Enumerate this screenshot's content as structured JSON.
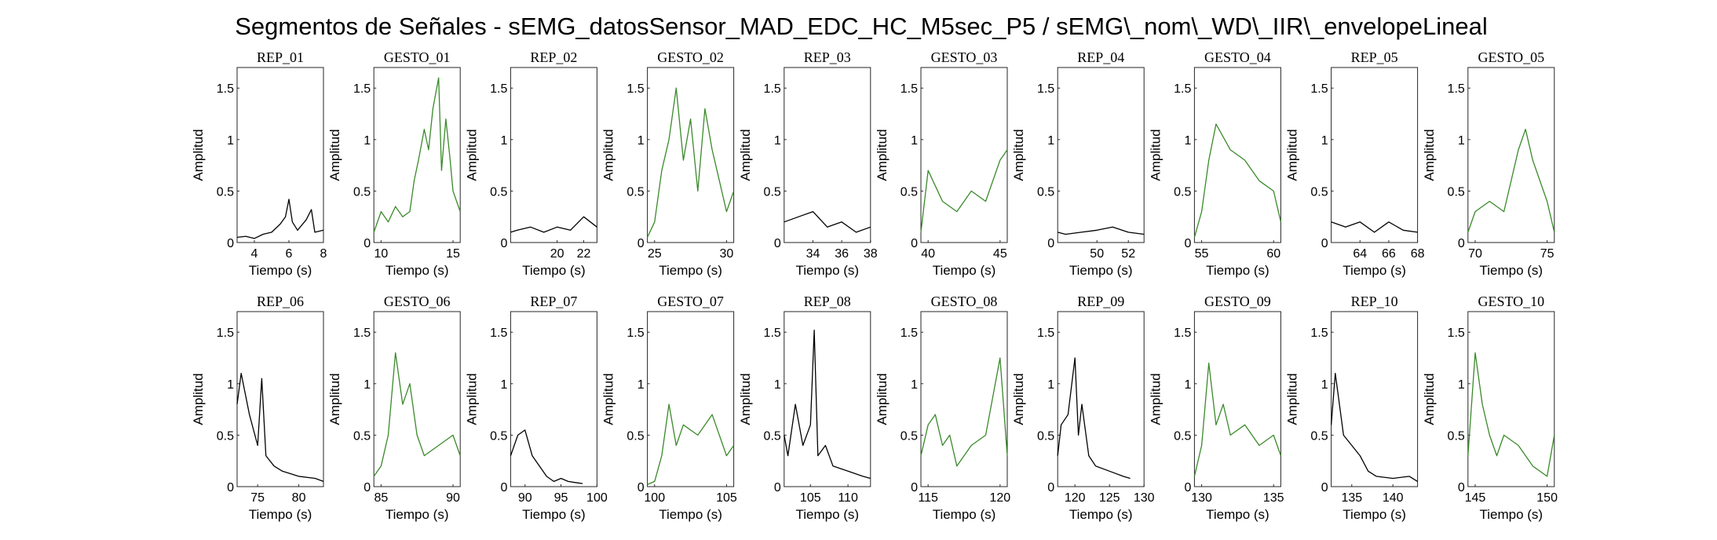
{
  "figure": {
    "title": "Segmentos de Señales - sEMG_datosSensor_MAD_EDC_HC_M5sec_P5 / sEMG\\_nom\\_WD\\_IIR\\_envelopeLineal"
  },
  "colors": {
    "rep": "#000000",
    "gesto": "#3a8a2a",
    "axis": "#262626"
  },
  "chart_data": [
    {
      "type": "line",
      "title": "REP_01",
      "series_color": "rep",
      "xlabel": "Tiempo (s)",
      "ylabel": "Amplitud",
      "xlim": [
        3,
        8
      ],
      "ylim": [
        0,
        1.7
      ],
      "xticks": [
        4,
        6,
        8
      ],
      "yticks": [
        0,
        0.5,
        1,
        1.5
      ],
      "x": [
        3,
        3.5,
        4,
        4.5,
        5,
        5.5,
        5.8,
        6,
        6.2,
        6.5,
        7,
        7.3,
        7.5,
        8
      ],
      "y": [
        0.05,
        0.06,
        0.04,
        0.08,
        0.1,
        0.18,
        0.25,
        0.42,
        0.2,
        0.12,
        0.22,
        0.32,
        0.1,
        0.12
      ]
    },
    {
      "type": "line",
      "title": "GESTO_01",
      "series_color": "gesto",
      "xlabel": "Tiempo (s)",
      "ylabel": "Amplitud",
      "xlim": [
        9.5,
        15.5
      ],
      "ylim": [
        0,
        1.7
      ],
      "xticks": [
        10,
        15
      ],
      "yticks": [
        0,
        0.5,
        1,
        1.5
      ],
      "x": [
        9.5,
        10,
        10.5,
        11,
        11.5,
        12,
        12.3,
        12.6,
        13,
        13.3,
        13.6,
        14,
        14.2,
        14.5,
        14.8,
        15,
        15.5
      ],
      "y": [
        0.1,
        0.3,
        0.2,
        0.35,
        0.25,
        0.3,
        0.6,
        0.8,
        1.1,
        0.9,
        1.3,
        1.6,
        0.7,
        1.2,
        0.8,
        0.5,
        0.3
      ]
    },
    {
      "type": "line",
      "title": "REP_02",
      "series_color": "rep",
      "xlabel": "Tiempo (s)",
      "ylabel": "Amplitud",
      "xlim": [
        16.5,
        23
      ],
      "ylim": [
        0,
        1.7
      ],
      "xticks": [
        20,
        22
      ],
      "yticks": [
        0,
        0.5,
        1,
        1.5
      ],
      "x": [
        16.5,
        17,
        18,
        19,
        20,
        21,
        22,
        23
      ],
      "y": [
        0.1,
        0.12,
        0.15,
        0.1,
        0.15,
        0.12,
        0.25,
        0.15
      ]
    },
    {
      "type": "line",
      "title": "GESTO_02",
      "series_color": "gesto",
      "xlabel": "Tiempo (s)",
      "ylabel": "Amplitud",
      "xlim": [
        24.5,
        30.5
      ],
      "ylim": [
        0,
        1.7
      ],
      "xticks": [
        25,
        30
      ],
      "yticks": [
        0,
        0.5,
        1,
        1.5
      ],
      "x": [
        24.5,
        25,
        25.5,
        26,
        26.5,
        27,
        27.5,
        28,
        28.5,
        29,
        29.5,
        30,
        30.5
      ],
      "y": [
        0.05,
        0.2,
        0.7,
        1.0,
        1.5,
        0.8,
        1.2,
        0.5,
        1.3,
        0.9,
        0.6,
        0.3,
        0.5
      ]
    },
    {
      "type": "line",
      "title": "REP_03",
      "series_color": "rep",
      "xlabel": "Tiempo (s)",
      "ylabel": "Amplitud",
      "xlim": [
        32,
        38
      ],
      "ylim": [
        0,
        1.7
      ],
      "xticks": [
        34,
        36,
        38
      ],
      "yticks": [
        0,
        0.5,
        1,
        1.5
      ],
      "x": [
        32,
        33,
        34,
        35,
        36,
        37,
        38
      ],
      "y": [
        0.2,
        0.25,
        0.3,
        0.15,
        0.2,
        0.1,
        0.15
      ]
    },
    {
      "type": "line",
      "title": "GESTO_03",
      "series_color": "gesto",
      "xlabel": "Tiempo (s)",
      "ylabel": "Amplitud",
      "xlim": [
        39.5,
        45.5
      ],
      "ylim": [
        0,
        1.7
      ],
      "xticks": [
        40,
        45
      ],
      "yticks": [
        0,
        0.5,
        1,
        1.5
      ],
      "x": [
        39.5,
        40,
        41,
        42,
        43,
        44,
        45,
        45.5
      ],
      "y": [
        0.1,
        0.7,
        0.4,
        0.3,
        0.5,
        0.4,
        0.8,
        0.9
      ]
    },
    {
      "type": "line",
      "title": "REP_04",
      "series_color": "rep",
      "xlabel": "Tiempo (s)",
      "ylabel": "Amplitud",
      "xlim": [
        47.5,
        53
      ],
      "ylim": [
        0,
        1.7
      ],
      "xticks": [
        50,
        52
      ],
      "yticks": [
        0,
        0.5,
        1,
        1.5
      ],
      "x": [
        47.5,
        48,
        49,
        50,
        51,
        52,
        53
      ],
      "y": [
        0.1,
        0.08,
        0.1,
        0.12,
        0.15,
        0.1,
        0.08
      ]
    },
    {
      "type": "line",
      "title": "GESTO_04",
      "series_color": "gesto",
      "xlabel": "Tiempo (s)",
      "ylabel": "Amplitud",
      "xlim": [
        54.5,
        60.5
      ],
      "ylim": [
        0,
        1.7
      ],
      "xticks": [
        55,
        60
      ],
      "yticks": [
        0,
        0.5,
        1,
        1.5
      ],
      "x": [
        54.5,
        55,
        55.5,
        56,
        57,
        58,
        59,
        60,
        60.5
      ],
      "y": [
        0.05,
        0.3,
        0.8,
        1.15,
        0.9,
        0.8,
        0.6,
        0.5,
        0.2
      ]
    },
    {
      "type": "line",
      "title": "REP_05",
      "series_color": "rep",
      "xlabel": "Tiempo (s)",
      "ylabel": "Amplitud",
      "xlim": [
        62,
        68
      ],
      "ylim": [
        0,
        1.7
      ],
      "xticks": [
        64,
        66,
        68
      ],
      "yticks": [
        0,
        0.5,
        1,
        1.5
      ],
      "x": [
        62,
        63,
        64,
        65,
        66,
        67,
        68
      ],
      "y": [
        0.2,
        0.15,
        0.2,
        0.1,
        0.2,
        0.12,
        0.1
      ]
    },
    {
      "type": "line",
      "title": "GESTO_05",
      "series_color": "gesto",
      "xlabel": "Tiempo (s)",
      "ylabel": "Amplitud",
      "xlim": [
        69.5,
        75.5
      ],
      "ylim": [
        0,
        1.7
      ],
      "xticks": [
        70,
        75
      ],
      "yticks": [
        0,
        0.5,
        1,
        1.5
      ],
      "x": [
        69.5,
        70,
        71,
        72,
        73,
        73.5,
        74,
        75,
        75.5
      ],
      "y": [
        0.1,
        0.3,
        0.4,
        0.3,
        0.9,
        1.1,
        0.8,
        0.4,
        0.1
      ]
    },
    {
      "type": "line",
      "title": "REP_06",
      "series_color": "rep",
      "xlabel": "Tiempo (s)",
      "ylabel": "Amplitud",
      "xlim": [
        72.5,
        83
      ],
      "ylim": [
        0,
        1.7
      ],
      "xticks": [
        75,
        80
      ],
      "yticks": [
        0,
        0.5,
        1,
        1.5
      ],
      "x": [
        72.5,
        73,
        74,
        75,
        75.5,
        76,
        77,
        78,
        80,
        82,
        83
      ],
      "y": [
        0.8,
        1.1,
        0.7,
        0.4,
        1.05,
        0.3,
        0.2,
        0.15,
        0.1,
        0.08,
        0.05
      ]
    },
    {
      "type": "line",
      "title": "GESTO_06",
      "series_color": "gesto",
      "xlabel": "Tiempo (s)",
      "ylabel": "Amplitud",
      "xlim": [
        84.5,
        90.5
      ],
      "ylim": [
        0,
        1.7
      ],
      "xticks": [
        85,
        90
      ],
      "yticks": [
        0,
        0.5,
        1,
        1.5
      ],
      "x": [
        84.5,
        85,
        85.5,
        86,
        86.5,
        87,
        87.5,
        88,
        89,
        90,
        90.5
      ],
      "y": [
        0.1,
        0.2,
        0.5,
        1.3,
        0.8,
        1.0,
        0.5,
        0.3,
        0.4,
        0.5,
        0.3
      ]
    },
    {
      "type": "line",
      "title": "REP_07",
      "series_color": "rep",
      "xlabel": "Tiempo (s)",
      "ylabel": "Amplitud",
      "xlim": [
        88,
        100
      ],
      "ylim": [
        0,
        1.7
      ],
      "xticks": [
        90,
        95,
        100
      ],
      "yticks": [
        0,
        0.5,
        1,
        1.5
      ],
      "x": [
        88,
        89,
        90,
        91,
        92,
        93,
        94,
        95,
        96,
        97,
        98
      ],
      "y": [
        0.3,
        0.5,
        0.55,
        0.3,
        0.2,
        0.1,
        0.05,
        0.08,
        0.05,
        0.04,
        0.03
      ]
    },
    {
      "type": "line",
      "title": "GESTO_07",
      "series_color": "gesto",
      "xlabel": "Tiempo (s)",
      "ylabel": "Amplitud",
      "xlim": [
        99.5,
        105.5
      ],
      "ylim": [
        0,
        1.7
      ],
      "xticks": [
        100,
        105
      ],
      "yticks": [
        0,
        0.5,
        1,
        1.5
      ],
      "x": [
        99.5,
        100,
        100.5,
        101,
        101.5,
        102,
        103,
        104,
        105,
        105.5
      ],
      "y": [
        0.02,
        0.05,
        0.3,
        0.8,
        0.4,
        0.6,
        0.5,
        0.7,
        0.3,
        0.4
      ]
    },
    {
      "type": "line",
      "title": "REP_08",
      "series_color": "rep",
      "xlabel": "Tiempo (s)",
      "ylabel": "Amplitud",
      "xlim": [
        101.5,
        113
      ],
      "ylim": [
        0,
        1.7
      ],
      "xticks": [
        105,
        110
      ],
      "yticks": [
        0,
        0.5,
        1,
        1.5
      ],
      "x": [
        101.5,
        102,
        103,
        104,
        105,
        105.5,
        106,
        107,
        108,
        110,
        112,
        113
      ],
      "y": [
        0.5,
        0.3,
        0.8,
        0.4,
        0.6,
        1.52,
        0.3,
        0.4,
        0.2,
        0.15,
        0.1,
        0.08
      ]
    },
    {
      "type": "line",
      "title": "GESTO_08",
      "series_color": "gesto",
      "xlabel": "Tiempo (s)",
      "ylabel": "Amplitud",
      "xlim": [
        114.5,
        120.5
      ],
      "ylim": [
        0,
        1.7
      ],
      "xticks": [
        115,
        120
      ],
      "yticks": [
        0,
        0.5,
        1,
        1.5
      ],
      "x": [
        114.5,
        115,
        115.5,
        116,
        116.5,
        117,
        118,
        119,
        120,
        120.5
      ],
      "y": [
        0.3,
        0.6,
        0.7,
        0.4,
        0.5,
        0.2,
        0.4,
        0.5,
        1.25,
        0.3
      ]
    },
    {
      "type": "line",
      "title": "REP_09",
      "series_color": "rep",
      "xlabel": "Tiempo (s)",
      "ylabel": "Amplitud",
      "xlim": [
        117.5,
        130
      ],
      "ylim": [
        0,
        1.7
      ],
      "xticks": [
        120,
        125,
        130
      ],
      "yticks": [
        0,
        0.5,
        1,
        1.5
      ],
      "x": [
        117.5,
        118,
        119,
        120,
        120.5,
        121,
        122,
        123,
        125,
        127,
        128
      ],
      "y": [
        0.3,
        0.6,
        0.7,
        1.25,
        0.5,
        0.8,
        0.3,
        0.2,
        0.15,
        0.1,
        0.08
      ]
    },
    {
      "type": "line",
      "title": "GESTO_09",
      "series_color": "gesto",
      "xlabel": "Tiempo (s)",
      "ylabel": "Amplitud",
      "xlim": [
        129.5,
        135.5
      ],
      "ylim": [
        0,
        1.7
      ],
      "xticks": [
        130,
        135
      ],
      "yticks": [
        0,
        0.5,
        1,
        1.5
      ],
      "x": [
        129.5,
        130,
        130.5,
        131,
        131.5,
        132,
        133,
        134,
        135,
        135.5
      ],
      "y": [
        0.1,
        0.4,
        1.2,
        0.6,
        0.8,
        0.5,
        0.6,
        0.4,
        0.5,
        0.3
      ]
    },
    {
      "type": "line",
      "title": "REP_10",
      "series_color": "rep",
      "xlabel": "Tiempo (s)",
      "ylabel": "Amplitud",
      "xlim": [
        132.5,
        143
      ],
      "ylim": [
        0,
        1.7
      ],
      "xticks": [
        135,
        140
      ],
      "yticks": [
        0,
        0.5,
        1,
        1.5
      ],
      "x": [
        132.5,
        133,
        134,
        135,
        136,
        137,
        138,
        140,
        142,
        143
      ],
      "y": [
        0.6,
        1.1,
        0.5,
        0.4,
        0.3,
        0.15,
        0.1,
        0.08,
        0.1,
        0.05
      ]
    },
    {
      "type": "line",
      "title": "GESTO_10",
      "series_color": "gesto",
      "xlabel": "Tiempo (s)",
      "ylabel": "Amplitud",
      "xlim": [
        144.5,
        150.5
      ],
      "ylim": [
        0,
        1.7
      ],
      "xticks": [
        145,
        150
      ],
      "yticks": [
        0,
        0.5,
        1,
        1.5
      ],
      "x": [
        144.5,
        145,
        145.5,
        146,
        146.5,
        147,
        148,
        149,
        150,
        150.5
      ],
      "y": [
        0.3,
        1.3,
        0.8,
        0.5,
        0.3,
        0.5,
        0.4,
        0.2,
        0.1,
        0.5
      ]
    }
  ]
}
